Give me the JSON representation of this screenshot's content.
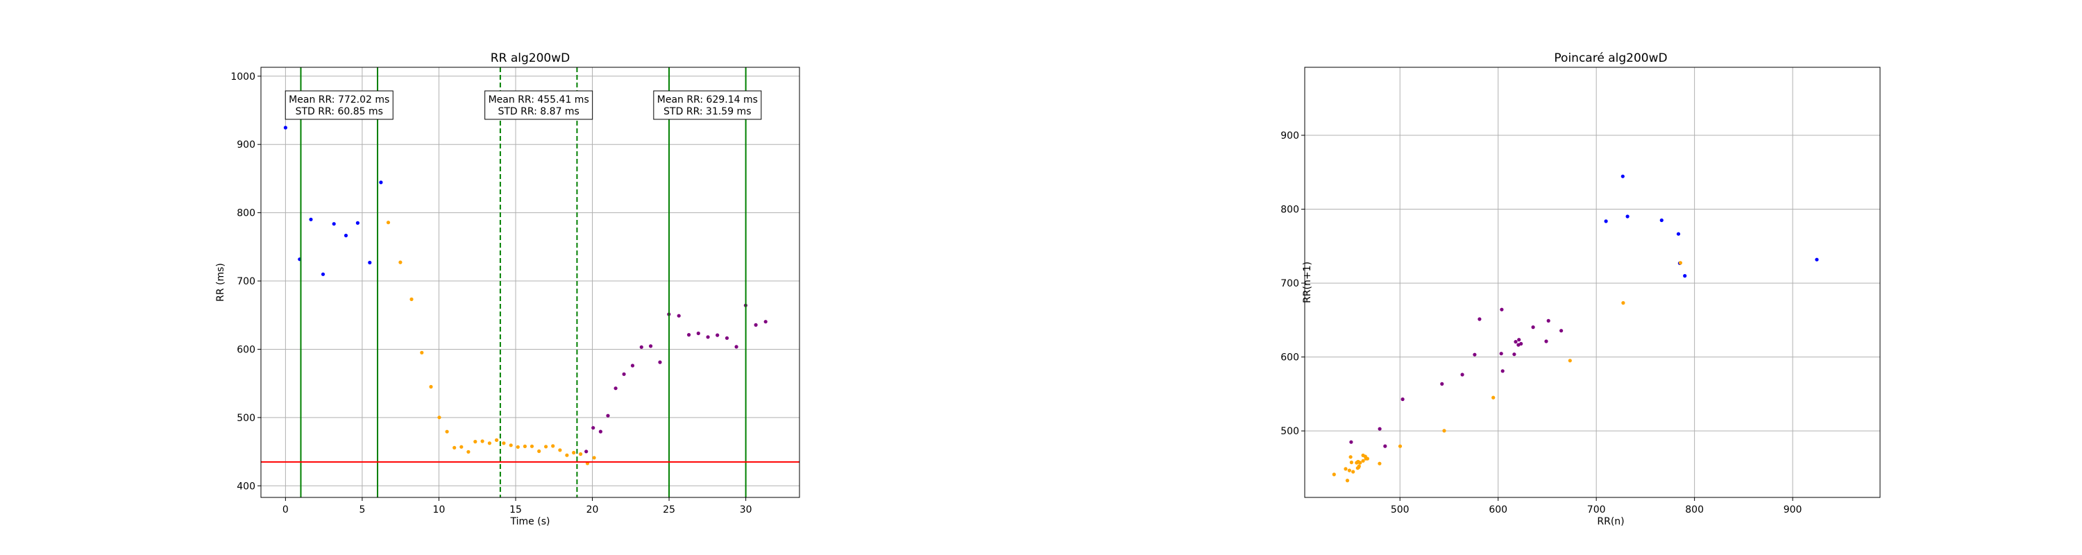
{
  "colors": {
    "segment1": "#0000ff",
    "transition": "#ffa500",
    "segment2": "#800080",
    "window_line": "#008000",
    "threshold_line": "#ff0000",
    "grid": "#b0b0b0"
  },
  "chart_data": [
    {
      "type": "scatter",
      "title": "RR alg200wD",
      "xlabel": "Time (s)",
      "ylabel": "RR (ms)",
      "xlim": [
        -1.6,
        33.5
      ],
      "ylim": [
        383,
        1013
      ],
      "xticks": [
        "0",
        "5",
        "10",
        "15",
        "20",
        "25",
        "30"
      ],
      "yticks": [
        "400",
        "500",
        "600",
        "700",
        "800",
        "900",
        "1000"
      ],
      "grid": true,
      "vertical_lines": [
        {
          "x": 1,
          "style": "solid",
          "color": "green"
        },
        {
          "x": 6,
          "style": "solid",
          "color": "green"
        },
        {
          "x": 14,
          "style": "dashed",
          "color": "green"
        },
        {
          "x": 19,
          "style": "dashed",
          "color": "green"
        },
        {
          "x": 25,
          "style": "solid",
          "color": "green"
        },
        {
          "x": 30,
          "style": "solid",
          "color": "green"
        }
      ],
      "horizontal_lines": [
        {
          "y": 435,
          "color": "red"
        }
      ],
      "annotations": [
        {
          "x": 3.5,
          "line1": "Mean RR: 772.02 ms",
          "line2": "STD RR: 60.85 ms"
        },
        {
          "x": 16.5,
          "line1": "Mean RR: 455.41 ms",
          "line2": "STD RR: 8.87 ms"
        },
        {
          "x": 27.5,
          "line1": "Mean RR: 629.14 ms",
          "line2": "STD RR: 31.59 ms"
        }
      ],
      "series": [
        {
          "color": "blue",
          "x_range": [
            0,
            7
          ],
          "pattern": "steady ~772 ms, std ~55 ms"
        },
        {
          "color": "orange",
          "x_range": [
            7,
            20
          ],
          "pattern": "decay from ~760 ms to ~440 ms"
        },
        {
          "color": "purple",
          "x_range": [
            19.5,
            31.5
          ],
          "pattern": "rise from ~450 ms to ~640 ms plateau"
        }
      ]
    },
    {
      "type": "scatter",
      "title": "Poincaré alg200wD",
      "xlabel": "RR(n)",
      "ylabel": "RR(n+1)",
      "xlim": [
        403,
        989
      ],
      "ylim": [
        410,
        992
      ],
      "xticks": [
        "500",
        "600",
        "700",
        "800",
        "900"
      ],
      "yticks": [
        "500",
        "600",
        "700",
        "800",
        "900"
      ],
      "grid": true,
      "series": [
        {
          "color": "blue",
          "pattern": "cluster ~660-970 ms along identity line"
        },
        {
          "color": "orange",
          "pattern": "spread 435-870 ms along identity line"
        },
        {
          "color": "purple",
          "pattern": "dense band 440-750 ms along identity line"
        }
      ]
    }
  ]
}
